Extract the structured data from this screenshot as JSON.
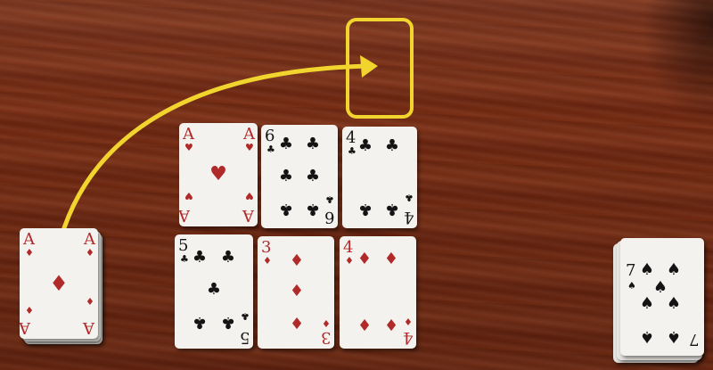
{
  "scene": {
    "surface": "wooden table",
    "highlight_color": "#f1d52e",
    "arrow_color": "#f1d52e"
  },
  "cards": {
    "ace_hearts": {
      "rank": "A",
      "suit": "♥",
      "color": "red"
    },
    "six_clubs": {
      "rank": "6",
      "suit": "♣",
      "color": "black"
    },
    "four_clubs": {
      "rank": "4",
      "suit": "♣",
      "color": "black"
    },
    "five_clubs": {
      "rank": "5",
      "suit": "♣",
      "color": "black"
    },
    "three_diamonds": {
      "rank": "3",
      "suit": "♦",
      "color": "red"
    },
    "four_diamonds": {
      "rank": "4",
      "suit": "♦",
      "color": "red"
    },
    "ace_diamonds_pile": {
      "rank": "A",
      "suit": "♦",
      "color": "red"
    },
    "seven_spades_pile": {
      "rank": "7",
      "suit": "♠",
      "color": "black"
    }
  }
}
